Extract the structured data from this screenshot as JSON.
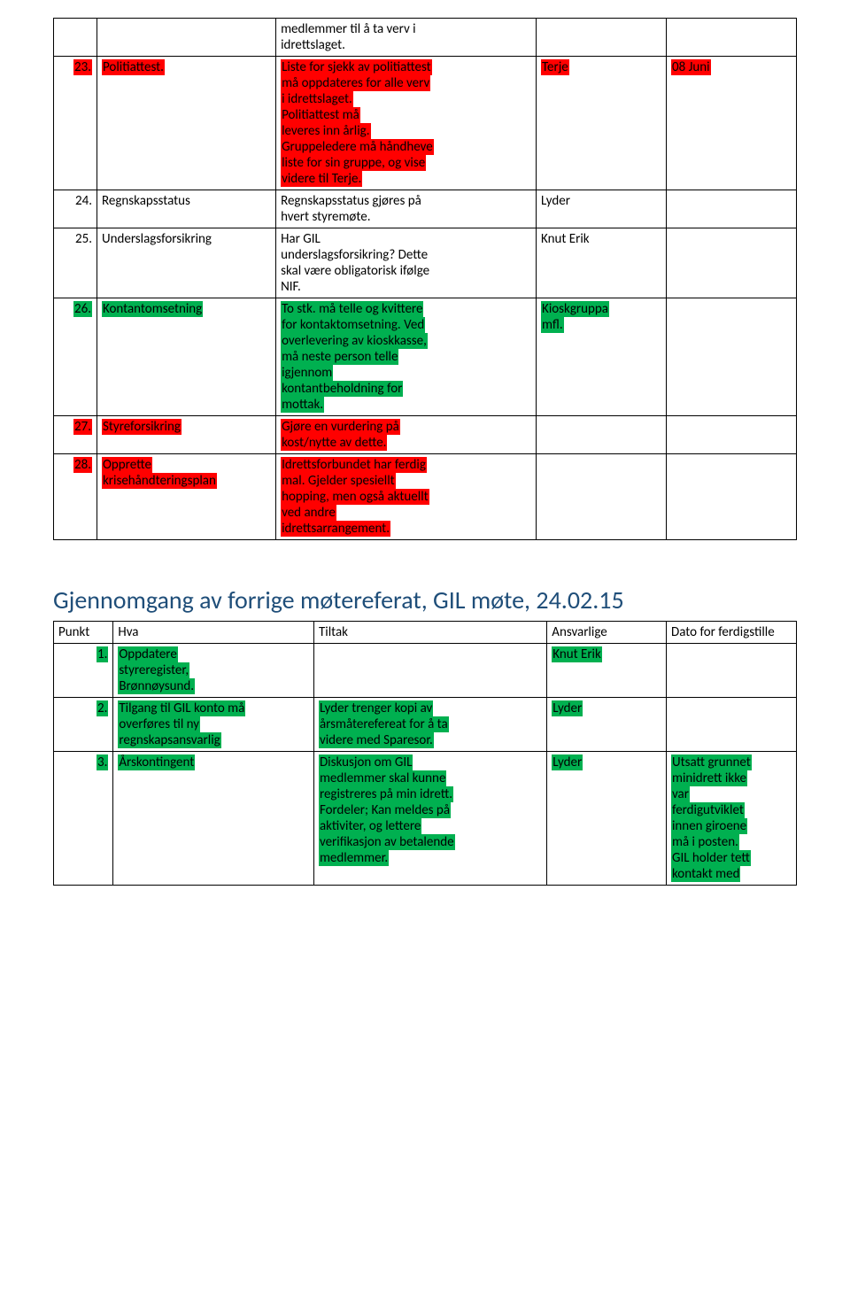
{
  "colors": {
    "red": "#ff0000",
    "green": "#00b050",
    "heading": "#1f4e79"
  },
  "table1": {
    "rows": [
      {
        "num": "",
        "num_hl": null,
        "hva": "",
        "hva_hl": null,
        "tiltak_lines": [
          {
            "t": "medlemmer til å ta verv i",
            "hl": null
          },
          {
            "t": "idrettslaget.",
            "hl": null
          }
        ],
        "ansv": "",
        "ansv_hl": null,
        "dato": "",
        "dato_hl": null
      },
      {
        "num": "23.",
        "num_hl": "red",
        "hva": "Politiattest.",
        "hva_hl": "red",
        "tiltak_lines": [
          {
            "t": "Liste for sjekk av politiattest",
            "hl": "red"
          },
          {
            "t": "må oppdateres for alle verv",
            "hl": "red"
          },
          {
            "t": "i idrettslaget.",
            "hl": "red"
          },
          {
            "t": " Politiattest må",
            "hl": "red"
          },
          {
            "t": "leveres inn årlig.",
            "hl": "red"
          },
          {
            "t": "Gruppeledere må håndheve",
            "hl": "red"
          },
          {
            "t": "liste for sin gruppe, og vise",
            "hl": "red"
          },
          {
            "t": "videre til Terje.",
            "hl": "red"
          }
        ],
        "ansv": "Terje",
        "ansv_hl": "red",
        "dato": "08 Juni",
        "dato_hl": "red"
      },
      {
        "num": "24.",
        "num_hl": null,
        "hva": "Regnskapsstatus",
        "hva_hl": null,
        "tiltak_lines": [
          {
            "t": "Regnskapsstatus gjøres på",
            "hl": null
          },
          {
            "t": "hvert styremøte.",
            "hl": null
          }
        ],
        "ansv": "Lyder",
        "ansv_hl": null,
        "dato": "",
        "dato_hl": null
      },
      {
        "num": "25.",
        "num_hl": null,
        "hva": "Underslagsforsikring",
        "hva_hl": null,
        "tiltak_lines": [
          {
            "t": "Har GIL",
            "hl": null
          },
          {
            "t": "underslagsforsikring? Dette",
            "hl": null
          },
          {
            "t": "skal være obligatorisk ifølge",
            "hl": null
          },
          {
            "t": "NIF.",
            "hl": null
          }
        ],
        "ansv": "Knut Erik",
        "ansv_hl": null,
        "dato": "",
        "dato_hl": null
      },
      {
        "num": "26.",
        "num_hl": "green",
        "hva": "Kontantomsetning",
        "hva_hl": "green",
        "tiltak_lines": [
          {
            "t": "To stk. må telle og kvittere",
            "hl": "green"
          },
          {
            "t": "for kontaktomsetning. Ved",
            "hl": "green"
          },
          {
            "t": "overlevering av kioskkasse,",
            "hl": "green"
          },
          {
            "t": "må neste person telle",
            "hl": "green"
          },
          {
            "t": "igjennom",
            "hl": "green"
          },
          {
            "t": "kontantbeholdning for",
            "hl": "green"
          },
          {
            "t": "mottak.",
            "hl": "green"
          }
        ],
        "ansv_lines": [
          {
            "t": "Kioskgruppa",
            "hl": "green"
          },
          {
            "t": "mfl.",
            "hl": "green"
          }
        ],
        "dato": "",
        "dato_hl": null
      },
      {
        "num": "27.",
        "num_hl": "red",
        "hva": "Styreforsikring",
        "hva_hl": "red",
        "tiltak_lines": [
          {
            "t": "Gjøre en vurdering på",
            "hl": "red"
          },
          {
            "t": "kost/nytte av dette.",
            "hl": "red"
          }
        ],
        "ansv": "",
        "ansv_hl": null,
        "dato": "",
        "dato_hl": null
      },
      {
        "num": "28.",
        "num_hl": "red",
        "hva_lines": [
          {
            "t": "Opprette",
            "hl": "red"
          },
          {
            "t": "krisehåndteringsplan",
            "hl": "red"
          }
        ],
        "tiltak_lines": [
          {
            "t": "Idrettsforbundet har ferdig",
            "hl": "red"
          },
          {
            "t": "mal. Gjelder spesiellt",
            "hl": "red"
          },
          {
            "t": "hopping, men også aktuellt",
            "hl": "red"
          },
          {
            "t": "ved andre",
            "hl": "red"
          },
          {
            "t": "idrettsarrangement.",
            "hl": "red"
          }
        ],
        "ansv": "",
        "ansv_hl": null,
        "dato": "",
        "dato_hl": null
      }
    ]
  },
  "heading": "Gjennomgang av forrige møtereferat, GIL møte, 24.02.15",
  "table2": {
    "headers": {
      "punkt": "Punkt",
      "hva": "Hva",
      "tiltak": "Tiltak",
      "ansv": "Ansvarlige",
      "dato": "Dato for ferdigstille"
    },
    "rows": [
      {
        "num": "1.",
        "num_hl": "green",
        "hva_lines": [
          {
            "t": "Oppdatere",
            "hl": "green"
          },
          {
            "t": "styreregister,",
            "hl": "green"
          },
          {
            "t": "Brønnøysund.",
            "hl": "green"
          }
        ],
        "tiltak_lines": [],
        "ansv": "Knut Erik",
        "ansv_hl": "green",
        "dato": "",
        "dato_hl": null
      },
      {
        "num": "2.",
        "num_hl": "green",
        "hva_lines": [
          {
            "t": "Tilgang til GIL konto må",
            "hl": "green"
          },
          {
            "t": "overføres til ny",
            "hl": "green"
          },
          {
            "t": "regnskapsansvarlig",
            "hl": "green"
          }
        ],
        "tiltak_lines": [
          {
            "t": "Lyder trenger kopi av",
            "hl": "green"
          },
          {
            "t": "årsmåterefereat for  å ta",
            "hl": "green"
          },
          {
            "t": "videre med Sparesor.",
            "hl": "green"
          }
        ],
        "ansv": "Lyder",
        "ansv_hl": "green",
        "dato": "",
        "dato_hl": null
      },
      {
        "num": "3.",
        "num_hl": "green",
        "hva": "Årskontingent",
        "hva_hl": "green",
        "tiltak_lines": [
          {
            "t": "Diskusjon om GIL",
            "hl": "green"
          },
          {
            "t": "medlemmer skal kunne",
            "hl": "green"
          },
          {
            "t": "registreres på min idrett.",
            "hl": "green"
          },
          {
            "t": "Fordeler; Kan meldes på",
            "hl": "green"
          },
          {
            "t": "aktiviter, og lettere",
            "hl": "green"
          },
          {
            "t": "verifikasjon av betalende",
            "hl": "green"
          },
          {
            "t": "medlemmer.",
            "hl": "green"
          }
        ],
        "ansv": "Lyder",
        "ansv_hl": "green",
        "dato_lines": [
          {
            "t": "Utsatt grunnet",
            "hl": "green"
          },
          {
            "t": "minidrett ikke",
            "hl": "green"
          },
          {
            "t": "var",
            "hl": "green"
          },
          {
            "t": "ferdigutviklet",
            "hl": "green"
          },
          {
            "t": "innen giroene",
            "hl": "green"
          },
          {
            "t": "må i posten.",
            "hl": "green"
          },
          {
            "t": "GIL holder tett",
            "hl": "green"
          },
          {
            "t": "kontakt med",
            "hl": "green"
          }
        ]
      }
    ]
  }
}
